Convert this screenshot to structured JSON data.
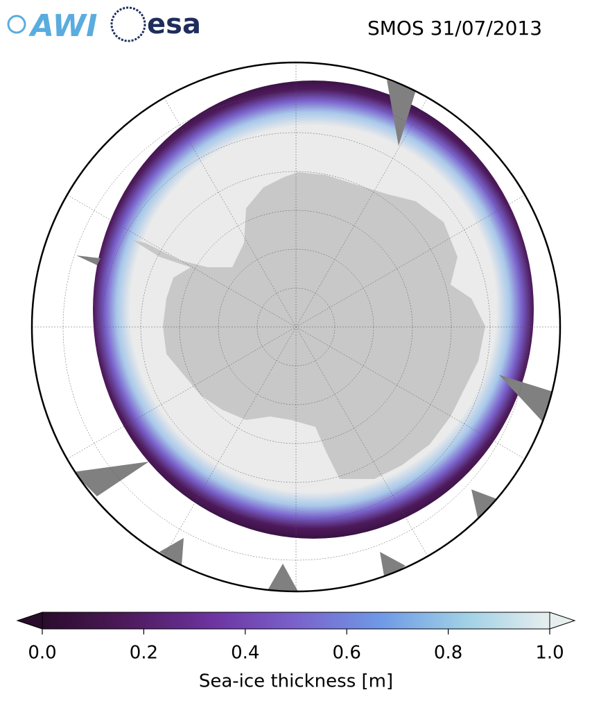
{
  "header": {
    "logos": [
      "AWI",
      "esa"
    ],
    "title": "SMOS 31/07/2013"
  },
  "colorbar": {
    "label": "Sea-ice thickness [m]",
    "lim": [
      0,
      1
    ],
    "ticks": [
      {
        "value": 0,
        "label": "0.0"
      },
      0.2,
      0.4,
      0.6,
      0.8,
      {
        "value": 1,
        "label": "1.0"
      }
    ],
    "colormap": [
      "#2a0c2c",
      "#4e1a5c",
      "#6d33a0",
      "#7a62cc",
      "#6f99e6",
      "#9fd0e6",
      "#e7efee"
    ],
    "extend": "both"
  }
}
